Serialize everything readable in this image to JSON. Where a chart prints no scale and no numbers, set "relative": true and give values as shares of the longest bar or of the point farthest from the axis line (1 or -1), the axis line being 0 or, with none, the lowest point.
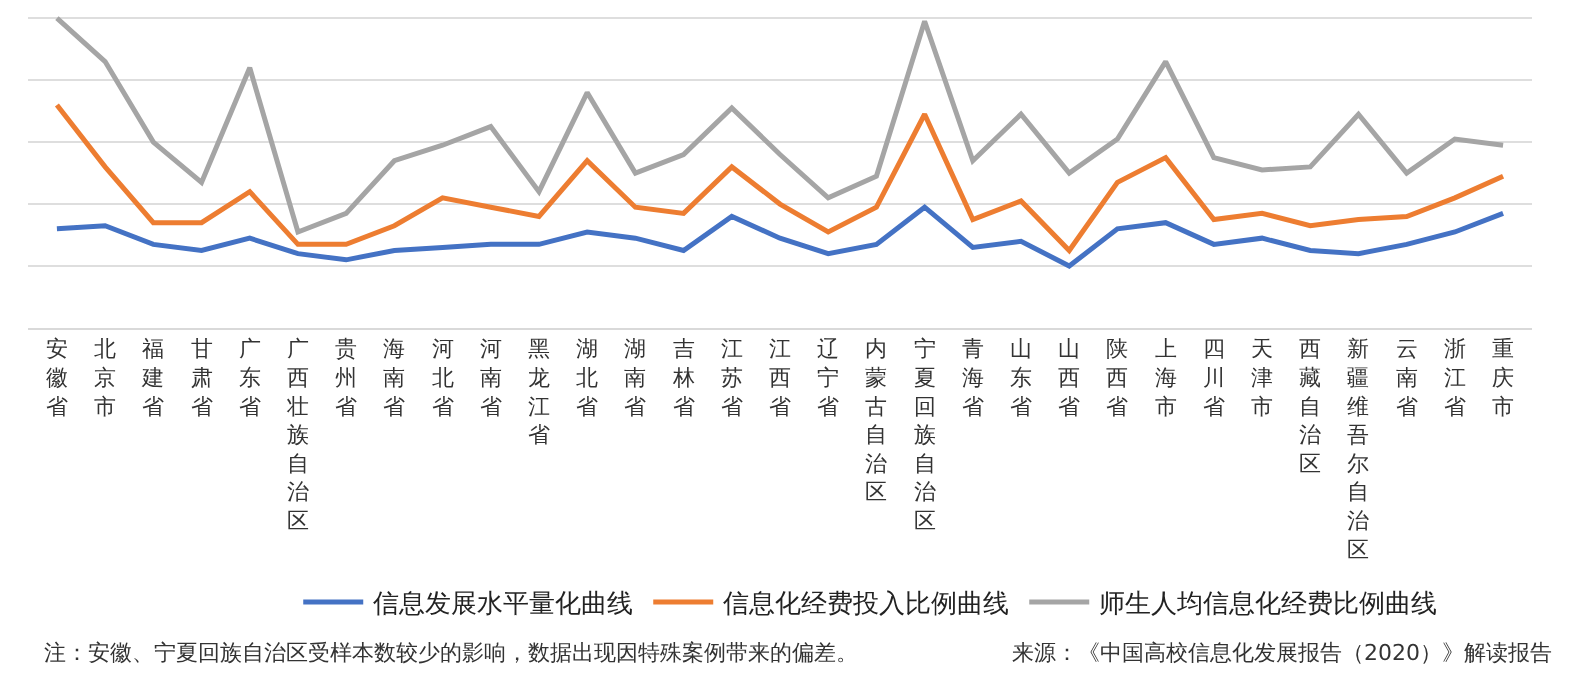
{
  "chart_data": {
    "type": "line",
    "relative": true,
    "grid": "y",
    "legend": "bottom",
    "marker": "none",
    "line_style": "solid",
    "categories": [
      "安徽省",
      "北京市",
      "福建省",
      "甘肃省",
      "广东省",
      "广西壮族自治区",
      "贵州省",
      "海南省",
      "河北省",
      "河南省",
      "黑龙江省",
      "湖北省",
      "湖南省",
      "吉林省",
      "江苏省",
      "江西省",
      "辽宁省",
      "内蒙古自治区",
      "宁夏回族自治区",
      "青海省",
      "山东省",
      "山西省",
      "陕西省",
      "上海市",
      "四川省",
      "天津市",
      "西藏自治区",
      "新疆维吾尔自治区",
      "云南省",
      "浙江省",
      "重庆市"
    ],
    "series": [
      {
        "name": "信息发展水平量化曲线",
        "color": "#4472c4",
        "values": [
          0.32,
          0.33,
          0.27,
          0.25,
          0.29,
          0.24,
          0.22,
          0.25,
          0.26,
          0.27,
          0.27,
          0.31,
          0.29,
          0.25,
          0.36,
          0.29,
          0.24,
          0.27,
          0.39,
          0.26,
          0.28,
          0.2,
          0.32,
          0.34,
          0.27,
          0.29,
          0.25,
          0.24,
          0.27,
          0.31,
          0.37
        ]
      },
      {
        "name": "信息化经费投入比例曲线",
        "color": "#ed7d31",
        "values": [
          0.72,
          0.52,
          0.34,
          0.34,
          0.44,
          0.27,
          0.27,
          0.33,
          0.42,
          0.39,
          0.36,
          0.54,
          0.39,
          0.37,
          0.52,
          0.4,
          0.31,
          0.39,
          0.69,
          0.35,
          0.41,
          0.25,
          0.47,
          0.55,
          0.35,
          0.37,
          0.33,
          0.35,
          0.36,
          0.42,
          0.49
        ]
      },
      {
        "name": "师生人均信息化经费比例曲线",
        "color": "#a5a5a5",
        "values": [
          1,
          0.86,
          0.6,
          0.47,
          0.84,
          0.31,
          0.37,
          0.54,
          0.59,
          0.65,
          0.44,
          0.76,
          0.5,
          0.56,
          0.71,
          0.56,
          0.42,
          0.49,
          0.99,
          0.54,
          0.69,
          0.5,
          0.61,
          0.86,
          0.55,
          0.51,
          0.52,
          0.69,
          0.5,
          0.61,
          0.59
        ]
      }
    ],
    "annotations": [
      "注：安徽、宁夏回族自治区受样本数较少的影响，数据出现因特殊案例带来的偏差。",
      "来源：《中国高校信息化发展报告（2020）》解读报告"
    ]
  }
}
